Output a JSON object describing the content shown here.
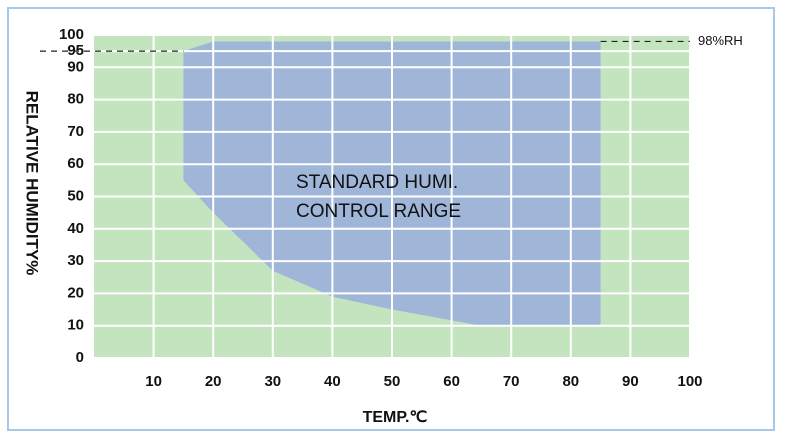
{
  "chart_data": {
    "type": "area",
    "x_label": "TEMP.℃",
    "y_label": "RELATIVE HUMIDITY%",
    "annotation": [
      "STANDARD HUMI.",
      "CONTROL RANGE"
    ],
    "xlim": [
      0,
      100
    ],
    "ylim": [
      0,
      100
    ],
    "xticks": [
      10,
      20,
      30,
      40,
      50,
      60,
      70,
      80,
      90,
      100
    ],
    "yticks": [
      0,
      10,
      20,
      30,
      40,
      50,
      60,
      70,
      80,
      90,
      95,
      100
    ],
    "grid": true,
    "plot_color": "#c4e3bf",
    "series": [
      {
        "color": "#9fb6d8",
        "x": [
          15,
          15,
          20,
          85,
          85,
          65,
          50,
          40,
          30,
          20
        ],
        "values": [
          55,
          95,
          98,
          98,
          10,
          10,
          15,
          19,
          27,
          45
        ]
      }
    ],
    "reference_lines": [
      {
        "y": 95,
        "x_from": 0,
        "x_to": 15
      },
      {
        "y": 98,
        "x_from": 85,
        "x_to": 100,
        "label": "98%RH"
      }
    ]
  }
}
